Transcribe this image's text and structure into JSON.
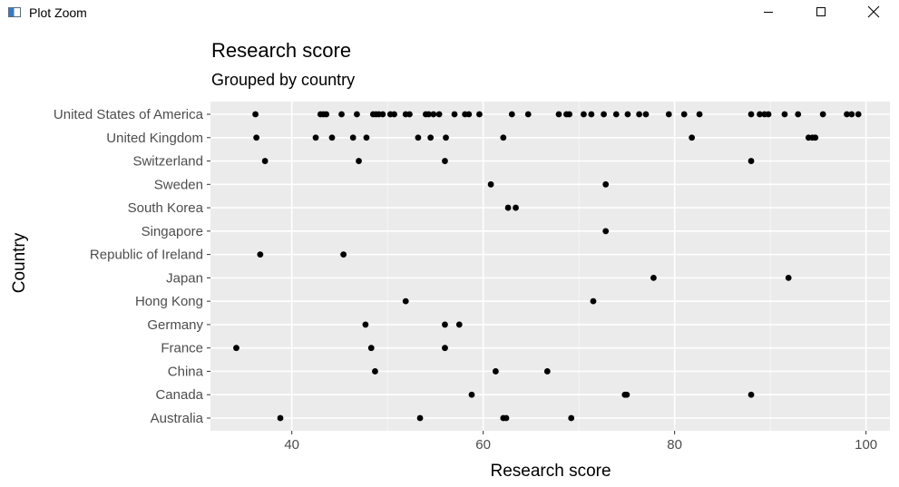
{
  "window": {
    "title": "Plot Zoom",
    "icon": "plot-window-icon",
    "controls": [
      "minimize-icon",
      "maximize-icon",
      "close-icon"
    ]
  },
  "chart_data": {
    "type": "scatter",
    "title": "Research score",
    "subtitle": "Grouped by country",
    "xlabel": "Research score",
    "ylabel": "Country",
    "xlim": [
      31.5,
      102.5
    ],
    "xticks": [
      40,
      60,
      80,
      100
    ],
    "grid": true,
    "legend": "none",
    "panel_background": "#ebebeb",
    "point_color": "#000000",
    "categories": [
      "Australia",
      "Canada",
      "China",
      "France",
      "Germany",
      "Hong Kong",
      "Japan",
      "Republic of Ireland",
      "Singapore",
      "South Korea",
      "Sweden",
      "Switzerland",
      "United Kingdom",
      "United States of America"
    ],
    "series": [
      {
        "category": "United States of America",
        "values": [
          36.2,
          43.0,
          43.3,
          43.6,
          45.2,
          46.8,
          48.5,
          48.8,
          49.1,
          49.5,
          50.3,
          50.7,
          51.9,
          52.3,
          54.0,
          54.3,
          54.8,
          55.4,
          57.0,
          58.1,
          58.5,
          59.6,
          63.0,
          64.7,
          67.9,
          68.7,
          69.0,
          70.5,
          71.3,
          72.6,
          73.9,
          75.1,
          76.3,
          77.0,
          79.4,
          81.0,
          82.6,
          88.0,
          88.9,
          89.4,
          89.8,
          91.5,
          92.9,
          95.5,
          98.0,
          98.5,
          99.2
        ]
      },
      {
        "category": "United Kingdom",
        "values": [
          36.3,
          42.5,
          44.2,
          46.4,
          47.8,
          53.2,
          54.5,
          56.1,
          62.1,
          81.8,
          94.0,
          94.4,
          94.7
        ]
      },
      {
        "category": "Switzerland",
        "values": [
          37.2,
          47.0,
          56.0,
          88.0
        ]
      },
      {
        "category": "Sweden",
        "values": [
          60.8,
          72.8
        ]
      },
      {
        "category": "South Korea",
        "values": [
          62.6,
          63.4
        ]
      },
      {
        "category": "Singapore",
        "values": [
          72.8
        ]
      },
      {
        "category": "Republic of Ireland",
        "values": [
          36.7,
          45.4
        ]
      },
      {
        "category": "Japan",
        "values": [
          77.8,
          91.9
        ]
      },
      {
        "category": "Hong Kong",
        "values": [
          51.9,
          71.5
        ]
      },
      {
        "category": "Germany",
        "values": [
          47.7,
          56.0,
          57.5
        ]
      },
      {
        "category": "France",
        "values": [
          34.2,
          48.3,
          56.0
        ]
      },
      {
        "category": "China",
        "values": [
          48.7,
          61.3,
          66.7
        ]
      },
      {
        "category": "Canada",
        "values": [
          58.8,
          74.8,
          75.0,
          88.0
        ]
      },
      {
        "category": "Australia",
        "values": [
          38.8,
          53.4,
          62.1,
          62.4,
          69.2
        ]
      }
    ]
  }
}
